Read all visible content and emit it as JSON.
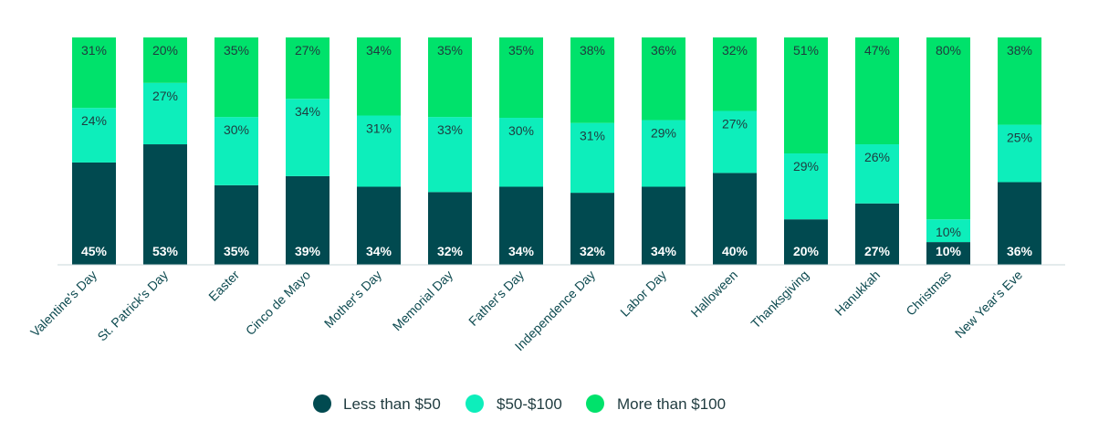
{
  "chart_data": {
    "type": "bar",
    "stacked": true,
    "categories": [
      "Valentine's Day",
      "St. Patrick's Day",
      "Easter",
      "Cinco de Mayo",
      "Mother's Day",
      "Memorial Day",
      "Father's Day",
      "Independence Day",
      "Labor Day",
      "Halloween",
      "Thanksgiving",
      "Hanukkah",
      "Christmas",
      "New Year's Eve"
    ],
    "series": [
      {
        "name": "Less than $50",
        "color": "#014a50",
        "values": [
          45,
          53,
          35,
          39,
          34,
          32,
          34,
          32,
          34,
          40,
          20,
          27,
          10,
          36
        ],
        "labels": [
          "45%",
          "53%",
          "35%",
          "39%",
          "34%",
          "32%",
          "34%",
          "32%",
          "34%",
          "40%",
          "20%",
          "27%",
          "10%",
          "36%"
        ]
      },
      {
        "name": "$50-$100",
        "color": "#0deebb",
        "values": [
          24,
          27,
          30,
          34,
          31,
          33,
          30,
          31,
          29,
          27,
          29,
          26,
          10,
          25
        ],
        "labels": [
          "24%",
          "27%",
          "30%",
          "34%",
          "31%",
          "33%",
          "30%",
          "31%",
          "29%",
          "27%",
          "29%",
          "26%",
          "10%",
          "25%"
        ]
      },
      {
        "name": "More than $100",
        "color": "#00e26b",
        "values": [
          31,
          20,
          35,
          27,
          34,
          35,
          35,
          38,
          36,
          32,
          51,
          47,
          80,
          38
        ],
        "labels": [
          "31%",
          "20%",
          "35%",
          "27%",
          "34%",
          "35%",
          "35%",
          "38%",
          "36%",
          "32%",
          "51%",
          "47%",
          "80%",
          "38%"
        ]
      }
    ],
    "title": "",
    "xlabel": "",
    "ylabel": "",
    "ylim": [
      0,
      100
    ],
    "grid": false,
    "legend_position": "bottom-center"
  }
}
